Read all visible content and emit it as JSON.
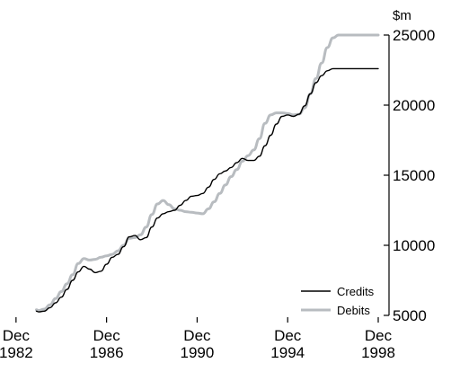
{
  "chart_data": {
    "type": "line",
    "unit_label": "$m",
    "x_tick_labels": [
      {
        "line1": "Dec",
        "line2": "1982",
        "year": 1982
      },
      {
        "line1": "Dec",
        "line2": "1986",
        "year": 1986
      },
      {
        "line1": "Dec",
        "line2": "1990",
        "year": 1990
      },
      {
        "line1": "Dec",
        "line2": "1994",
        "year": 1994
      },
      {
        "line1": "Dec",
        "line2": "1998",
        "year": 1998
      }
    ],
    "y_ticks": [
      5000,
      10000,
      15000,
      20000,
      25000
    ],
    "y_tick_labels": [
      "5000",
      "10000",
      "15000",
      "20000",
      "25000"
    ],
    "xlim": [
      1982.8,
      1998.0
    ],
    "ylim": [
      5000,
      25000
    ],
    "y_axis_side": "right",
    "legend_position": "bottom-right",
    "series": [
      {
        "name": "Credits",
        "color": "#000000",
        "x": [
          1982.9,
          1983.0,
          1983.25,
          1983.5,
          1983.75,
          1984.0,
          1984.25,
          1984.5,
          1984.75,
          1985.0,
          1985.25,
          1985.5,
          1985.75,
          1986.0,
          1986.25,
          1986.5,
          1986.75,
          1987.0,
          1987.25,
          1987.5,
          1987.75,
          1988.0,
          1988.25,
          1988.5,
          1988.75,
          1989.0,
          1989.25,
          1989.5,
          1989.75,
          1990.0,
          1990.25,
          1990.5,
          1990.75,
          1991.0,
          1991.25,
          1991.5,
          1991.75,
          1992.0,
          1992.25,
          1992.5,
          1992.75,
          1993.0,
          1993.25,
          1993.5,
          1993.75,
          1994.0,
          1994.25,
          1994.5,
          1994.75,
          1995.0,
          1995.25,
          1995.5,
          1995.75,
          1996.0,
          1996.25,
          1996.5,
          1996.75,
          1997.0,
          1997.25,
          1997.5,
          1997.75,
          1998.0
        ],
        "values": [
          5300,
          5250,
          5300,
          5550,
          5900,
          6300,
          6850,
          7500,
          8100,
          8500,
          8300,
          8050,
          8150,
          8650,
          9150,
          9350,
          9900,
          10600,
          10700,
          10400,
          10550,
          11300,
          11950,
          12250,
          12400,
          12500,
          12850,
          13200,
          13500,
          13550,
          13700,
          14150,
          14700,
          15100,
          15300,
          15550,
          15900,
          16200,
          16050,
          16050,
          16350,
          17100,
          17850,
          18650,
          19200,
          19300,
          19200,
          19350,
          19950,
          20800,
          21600,
          22100,
          22450,
          22600,
          22600,
          22600,
          22600,
          22600,
          22600,
          22600,
          22600,
          22600
        ]
      },
      {
        "name": "Debits",
        "color": "#b8bcc0",
        "x": [
          1982.9,
          1983.0,
          1983.25,
          1983.5,
          1983.75,
          1984.0,
          1984.25,
          1984.5,
          1984.75,
          1985.0,
          1985.25,
          1985.5,
          1985.75,
          1986.0,
          1986.25,
          1986.5,
          1986.75,
          1987.0,
          1987.25,
          1987.5,
          1987.75,
          1988.0,
          1988.25,
          1988.5,
          1988.75,
          1989.0,
          1989.25,
          1989.5,
          1989.75,
          1990.0,
          1990.25,
          1990.5,
          1990.75,
          1991.0,
          1991.25,
          1991.5,
          1991.75,
          1992.0,
          1992.25,
          1992.5,
          1992.75,
          1993.0,
          1993.25,
          1993.5,
          1993.75,
          1994.0,
          1994.25,
          1994.5,
          1994.75,
          1995.0,
          1995.25,
          1995.5,
          1995.75,
          1996.0,
          1996.25,
          1996.5,
          1996.75,
          1997.0,
          1997.25,
          1997.5,
          1997.75,
          1998.0
        ],
        "values": [
          5400,
          5350,
          5450,
          5750,
          6200,
          6700,
          7250,
          7900,
          8700,
          9050,
          8950,
          9000,
          9150,
          9250,
          9350,
          9600,
          10000,
          10500,
          10550,
          10750,
          11300,
          12200,
          12950,
          13200,
          12900,
          12600,
          12500,
          12400,
          12350,
          12300,
          12250,
          12600,
          13100,
          13700,
          14300,
          14900,
          15400,
          16000,
          16400,
          16800,
          17600,
          18700,
          19300,
          19450,
          19450,
          19400,
          19300,
          19350,
          19800,
          20800,
          21900,
          23000,
          24100,
          24800,
          25000,
          25000,
          25000,
          25000,
          25000,
          25000,
          25000,
          25000
        ]
      }
    ]
  }
}
